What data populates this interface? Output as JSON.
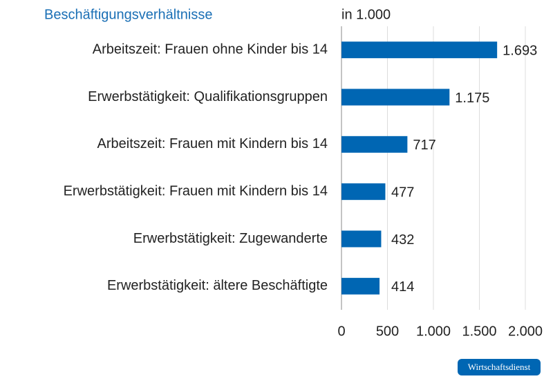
{
  "chart_data": {
    "type": "barh",
    "title": "Beschäftigungsverhältnisse",
    "unit_label": "in 1.000",
    "categories": [
      "Arbeitszeit: Frauen ohne Kinder bis 14",
      "Erwerbstätigkeit: Qualifikationsgruppen",
      "Arbeitszeit: Frauen mit Kindern bis 14",
      "Erwerbstätigkeit: Frauen mit Kindern bis 14",
      "Erwerbstätigkeit: Zugewanderte",
      "Erwerbstätigkeit: ältere Beschäftigte"
    ],
    "values": [
      1693,
      1175,
      717,
      477,
      432,
      414
    ],
    "value_labels": [
      "1.693",
      "1.175",
      "717",
      "477",
      "432",
      "414"
    ],
    "color": "#0066b3",
    "xlim": [
      0,
      2000
    ],
    "xticks": [
      0,
      500,
      {
        "value": 1000,
        "label": "1.000"
      },
      {
        "value": 1500,
        "label": "1.500"
      },
      {
        "value": 2000,
        "label": "2.000"
      }
    ],
    "grid": true,
    "source": "Wirtschaftsdienst"
  }
}
